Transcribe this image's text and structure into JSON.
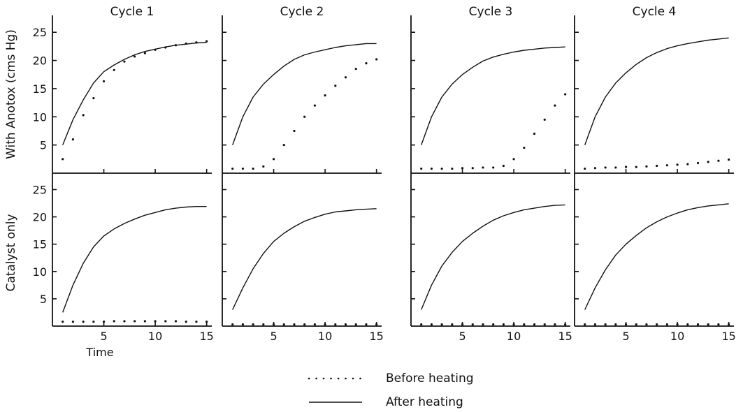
{
  "chart_data": {
    "type": "line",
    "row_labels": [
      "With Anotox (cms Hg)",
      "Catalyst only"
    ],
    "column_titles": [
      "Cycle 1",
      "Cycle 2",
      "Cycle 3",
      "Cycle 4"
    ],
    "xlabel": "Time",
    "xlim": [
      0,
      15.5
    ],
    "ylim": [
      0,
      28
    ],
    "x_ticks": [
      5,
      10,
      15
    ],
    "y_ticks": [
      5,
      10,
      15,
      20,
      25
    ],
    "x_tick_labels": [
      "5",
      "10",
      "15"
    ],
    "y_tick_labels": [
      "5",
      "10",
      "15",
      "20",
      "25"
    ],
    "legend": {
      "placement": "bottom-center",
      "entries": [
        {
          "style": "dotted",
          "label": "Before heating"
        },
        {
          "style": "solid",
          "label": "After heating"
        }
      ]
    },
    "panels": [
      {
        "row": 0,
        "col": 0,
        "after": {
          "x": [
            1,
            2,
            3,
            4,
            5,
            6,
            7,
            8,
            9,
            10,
            11,
            12,
            13,
            14,
            15
          ],
          "y": [
            5,
            9.5,
            13,
            16,
            18,
            19.2,
            20.2,
            21,
            21.6,
            22,
            22.4,
            22.7,
            22.9,
            23.1,
            23.2
          ]
        },
        "before": {
          "x": [
            1,
            2,
            3,
            4,
            5,
            6,
            7,
            8,
            9,
            10,
            11,
            12,
            13,
            14,
            15
          ],
          "y": [
            2.5,
            6,
            10.3,
            13.3,
            16.3,
            18.3,
            19.8,
            20.7,
            21.3,
            21.9,
            22.3,
            22.7,
            23,
            23.2,
            23.4
          ]
        }
      },
      {
        "row": 0,
        "col": 1,
        "after": {
          "x": [
            1,
            2,
            3,
            4,
            5,
            6,
            7,
            8,
            9,
            10,
            11,
            12,
            13,
            14,
            15
          ],
          "y": [
            5,
            10,
            13.5,
            15.8,
            17.5,
            19,
            20.2,
            21,
            21.5,
            21.9,
            22.3,
            22.6,
            22.8,
            23,
            23
          ]
        },
        "before": {
          "x": [
            1,
            2,
            3,
            4,
            5,
            6,
            7,
            8,
            9,
            10,
            11,
            12,
            13,
            14,
            15
          ],
          "y": [
            0.8,
            0.8,
            0.8,
            1.2,
            2.5,
            5,
            7.5,
            10,
            12,
            13.8,
            15.5,
            17,
            18.5,
            19.5,
            20.2
          ]
        }
      },
      {
        "row": 0,
        "col": 2,
        "after": {
          "x": [
            1,
            2,
            3,
            4,
            5,
            6,
            7,
            8,
            9,
            10,
            11,
            12,
            13,
            14,
            15
          ],
          "y": [
            5,
            10,
            13.5,
            15.8,
            17.5,
            18.8,
            19.9,
            20.6,
            21.1,
            21.5,
            21.8,
            22,
            22.2,
            22.3,
            22.4
          ]
        },
        "before": {
          "x": [
            1,
            2,
            3,
            4,
            5,
            6,
            7,
            8,
            9,
            10,
            11,
            12,
            13,
            14,
            15
          ],
          "y": [
            0.8,
            0.8,
            0.8,
            0.8,
            0.9,
            0.9,
            1,
            1,
            1.3,
            2.5,
            4.5,
            7,
            9.5,
            12,
            14
          ]
        }
      },
      {
        "row": 0,
        "col": 3,
        "after": {
          "x": [
            1,
            2,
            3,
            4,
            5,
            6,
            7,
            8,
            9,
            10,
            11,
            12,
            13,
            14,
            15
          ],
          "y": [
            5,
            10,
            13.5,
            16,
            17.8,
            19.3,
            20.5,
            21.4,
            22.1,
            22.6,
            23,
            23.3,
            23.6,
            23.8,
            24
          ]
        },
        "before": {
          "x": [
            1,
            2,
            3,
            4,
            5,
            6,
            7,
            8,
            9,
            10,
            11,
            12,
            13,
            14,
            15
          ],
          "y": [
            0.8,
            0.9,
            1,
            1,
            1.1,
            1.1,
            1.2,
            1.3,
            1.4,
            1.5,
            1.6,
            1.8,
            2,
            2.2,
            2.4
          ]
        }
      },
      {
        "row": 1,
        "col": 0,
        "after": {
          "x": [
            1,
            2,
            3,
            4,
            5,
            6,
            7,
            8,
            9,
            10,
            11,
            12,
            13,
            14,
            15
          ],
          "y": [
            2.5,
            7.5,
            11.5,
            14.5,
            16.5,
            17.8,
            18.8,
            19.6,
            20.3,
            20.8,
            21.3,
            21.6,
            21.8,
            21.9,
            21.9
          ]
        },
        "before": {
          "x": [
            1,
            2,
            3,
            4,
            5,
            6,
            7,
            8,
            9,
            10,
            11,
            12,
            13,
            14,
            15
          ],
          "y": [
            0.8,
            0.8,
            0.8,
            0.8,
            0.8,
            0.9,
            0.9,
            0.9,
            0.9,
            0.9,
            0.9,
            0.9,
            0.8,
            0.8,
            0.8
          ]
        }
      },
      {
        "row": 1,
        "col": 1,
        "after": {
          "x": [
            1,
            2,
            3,
            4,
            5,
            6,
            7,
            8,
            9,
            10,
            11,
            12,
            13,
            14,
            15
          ],
          "y": [
            3,
            7,
            10.5,
            13.3,
            15.5,
            17,
            18.2,
            19.2,
            19.9,
            20.5,
            20.9,
            21.1,
            21.3,
            21.4,
            21.5
          ]
        },
        "before": {
          "x": [
            1,
            2,
            3,
            4,
            5,
            6,
            7,
            8,
            9,
            10,
            11,
            12,
            13,
            14,
            15
          ],
          "y": [
            0.3,
            0.3,
            0.3,
            0.3,
            0.3,
            0.3,
            0.3,
            0.3,
            0.3,
            0.3,
            0.3,
            0.3,
            0.3,
            0.3,
            0.3
          ]
        }
      },
      {
        "row": 1,
        "col": 2,
        "after": {
          "x": [
            1,
            2,
            3,
            4,
            5,
            6,
            7,
            8,
            9,
            10,
            11,
            12,
            13,
            14,
            15
          ],
          "y": [
            3,
            7.5,
            11,
            13.5,
            15.5,
            17,
            18.3,
            19.4,
            20.2,
            20.8,
            21.3,
            21.6,
            21.9,
            22.1,
            22.2
          ]
        },
        "before": {
          "x": [
            1,
            2,
            3,
            4,
            5,
            6,
            7,
            8,
            9,
            10,
            11,
            12,
            13,
            14,
            15
          ],
          "y": [
            0.3,
            0.3,
            0.3,
            0.3,
            0.3,
            0.3,
            0.3,
            0.3,
            0.3,
            0.3,
            0.3,
            0.3,
            0.3,
            0.3,
            0.3
          ]
        }
      },
      {
        "row": 1,
        "col": 3,
        "after": {
          "x": [
            1,
            2,
            3,
            4,
            5,
            6,
            7,
            8,
            9,
            10,
            11,
            12,
            13,
            14,
            15
          ],
          "y": [
            3,
            7,
            10.3,
            13,
            15,
            16.6,
            18,
            19.1,
            20,
            20.7,
            21.3,
            21.7,
            22,
            22.2,
            22.4
          ]
        },
        "before": {
          "x": [
            1,
            2,
            3,
            4,
            5,
            6,
            7,
            8,
            9,
            10,
            11,
            12,
            13,
            14,
            15
          ],
          "y": [
            0.3,
            0.3,
            0.3,
            0.3,
            0.3,
            0.3,
            0.3,
            0.3,
            0.3,
            0.3,
            0.3,
            0.3,
            0.3,
            0.3,
            0.3
          ]
        }
      }
    ]
  }
}
